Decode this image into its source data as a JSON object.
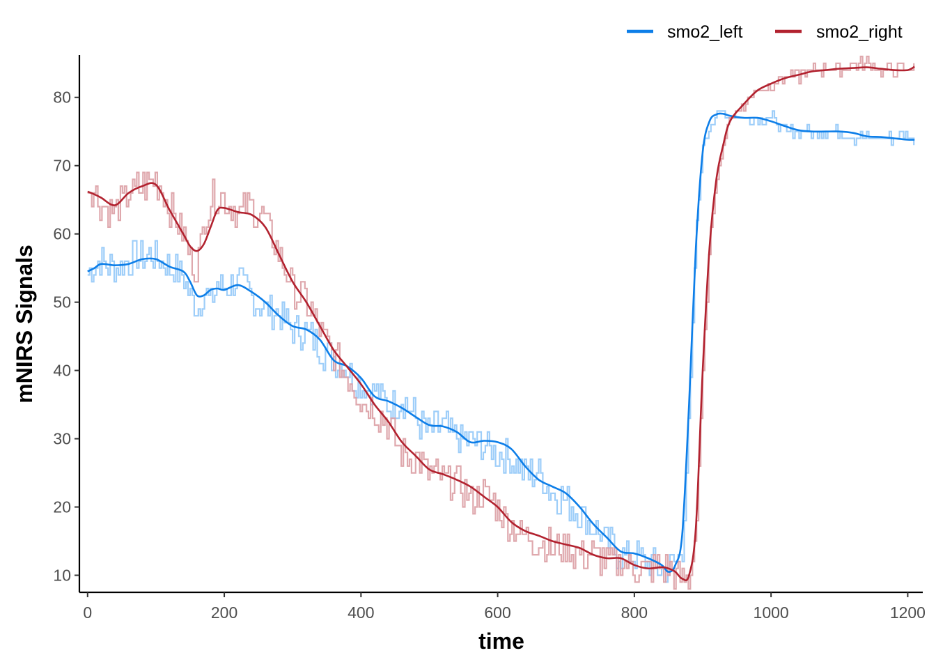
{
  "chart_data": {
    "type": "line",
    "xlabel": "time",
    "ylabel": "mNIRS Signals",
    "xlim": [
      -12,
      1222
    ],
    "ylim": [
      7.5,
      86.2
    ],
    "xticks": [
      0,
      200,
      400,
      600,
      800,
      1000,
      1200
    ],
    "yticks": [
      10,
      20,
      30,
      40,
      50,
      60,
      70,
      80
    ],
    "grid": false,
    "legend_position": "top-right",
    "series": [
      {
        "name": "smo2_left",
        "color": "#0d7ee8",
        "raw_color": "#93c9f8",
        "x": [
          0,
          10,
          20,
          40,
          60,
          80,
          100,
          120,
          140,
          150,
          160,
          170,
          180,
          190,
          200,
          220,
          240,
          260,
          280,
          300,
          320,
          340,
          360,
          380,
          400,
          420,
          440,
          460,
          480,
          500,
          520,
          540,
          560,
          580,
          600,
          620,
          640,
          660,
          680,
          700,
          720,
          740,
          760,
          780,
          800,
          820,
          840,
          850,
          860,
          870,
          880,
          890,
          900,
          910,
          920,
          930,
          940,
          960,
          980,
          1000,
          1020,
          1040,
          1060,
          1080,
          1100,
          1120,
          1140,
          1160,
          1180,
          1200,
          1210
        ],
        "smooth": [
          54.5,
          55.0,
          55.6,
          55.4,
          55.6,
          56.3,
          56.3,
          55.2,
          54.5,
          53.0,
          51.0,
          51.0,
          51.8,
          52.0,
          51.8,
          52.5,
          51.5,
          50.0,
          48.0,
          46.5,
          46.0,
          44.5,
          41.5,
          40.6,
          38.9,
          36.2,
          35.5,
          34.5,
          33.2,
          32.0,
          31.8,
          31.0,
          29.5,
          29.7,
          29.5,
          28.5,
          26.0,
          24.0,
          23.0,
          22.0,
          20.0,
          17.5,
          15.5,
          13.5,
          13.2,
          12.5,
          11.5,
          10.5,
          11.5,
          16.0,
          35.0,
          58.0,
          72.0,
          76.5,
          77.5,
          77.6,
          77.3,
          77.0,
          77.0,
          76.5,
          75.8,
          75.2,
          75.0,
          75.0,
          75.0,
          74.8,
          74.3,
          74.2,
          74.0,
          73.8,
          73.8
        ],
        "raw": [
          54.0,
          55.0,
          56.0,
          55.0,
          56.0,
          57.0,
          56.5,
          55.0,
          54.0,
          51.0,
          49.0,
          52.0,
          50.0,
          53.0,
          52.0,
          53.0,
          51.0,
          49.0,
          48.0,
          46.0,
          45.5,
          43.0,
          42.0,
          40.0,
          38.0,
          37.0,
          35.0,
          36.0,
          33.0,
          31.0,
          32.0,
          30.0,
          30.0,
          29.0,
          28.0,
          27.0,
          25.0,
          25.0,
          22.0,
          21.0,
          19.0,
          17.0,
          15.0,
          13.0,
          13.0,
          12.0,
          11.0,
          11.0,
          12.0,
          14.0,
          33.0,
          60.0,
          73.0,
          76.0,
          77.0,
          78.0,
          77.0,
          77.0,
          77.0,
          77.0,
          75.0,
          75.0,
          75.0,
          75.0,
          75.0,
          74.0,
          74.0,
          74.0,
          74.0,
          75.0,
          73.0
        ]
      },
      {
        "name": "smo2_right",
        "color": "#b2222f",
        "raw_color": "#dc9ea4",
        "x": [
          0,
          10,
          20,
          40,
          60,
          80,
          100,
          120,
          140,
          150,
          160,
          170,
          180,
          190,
          200,
          220,
          240,
          260,
          280,
          300,
          320,
          340,
          360,
          380,
          400,
          420,
          440,
          460,
          480,
          500,
          520,
          540,
          560,
          580,
          600,
          620,
          640,
          660,
          680,
          700,
          720,
          740,
          760,
          780,
          800,
          820,
          840,
          850,
          860,
          870,
          880,
          890,
          900,
          910,
          920,
          930,
          940,
          960,
          980,
          1000,
          1020,
          1040,
          1060,
          1080,
          1100,
          1120,
          1140,
          1160,
          1180,
          1200,
          1210
        ],
        "smooth": [
          66.2,
          65.8,
          65.3,
          64.2,
          66.0,
          67.0,
          67.2,
          63.5,
          60.0,
          58.2,
          57.5,
          58.5,
          61.0,
          63.5,
          63.8,
          63.2,
          62.8,
          61.0,
          57.0,
          53.0,
          50.0,
          46.5,
          43.0,
          40.5,
          38.0,
          35.0,
          32.5,
          29.5,
          27.5,
          25.5,
          24.8,
          24.0,
          23.0,
          21.5,
          20.0,
          17.8,
          16.5,
          15.8,
          15.0,
          14.5,
          14.0,
          13.0,
          12.5,
          12.5,
          11.5,
          11.0,
          11.2,
          11.0,
          10.5,
          9.5,
          10.0,
          17.0,
          40.0,
          58.0,
          68.0,
          73.0,
          76.5,
          79.0,
          81.0,
          82.0,
          82.8,
          83.3,
          83.8,
          84.0,
          84.2,
          84.3,
          84.4,
          84.2,
          84.0,
          84.0,
          84.5
        ],
        "raw": [
          67.0,
          66.0,
          64.0,
          63.0,
          66.0,
          67.0,
          68.0,
          64.0,
          60.0,
          56.0,
          55.0,
          62.0,
          65.0,
          66.0,
          65.0,
          63.0,
          64.0,
          62.0,
          57.0,
          52.0,
          50.0,
          46.0,
          42.0,
          39.0,
          36.0,
          34.0,
          32.0,
          28.0,
          27.0,
          25.0,
          24.0,
          24.0,
          21.0,
          22.0,
          20.0,
          17.0,
          16.0,
          15.0,
          14.0,
          14.0,
          13.0,
          13.0,
          12.0,
          12.0,
          11.0,
          11.0,
          11.0,
          11.0,
          10.0,
          9.0,
          9.0,
          16.0,
          40.0,
          58.0,
          68.0,
          73.0,
          77.0,
          79.0,
          81.0,
          82.0,
          83.0,
          83.0,
          84.0,
          84.0,
          84.0,
          85.0,
          85.0,
          84.0,
          84.0,
          84.0,
          85.0
        ]
      }
    ]
  }
}
